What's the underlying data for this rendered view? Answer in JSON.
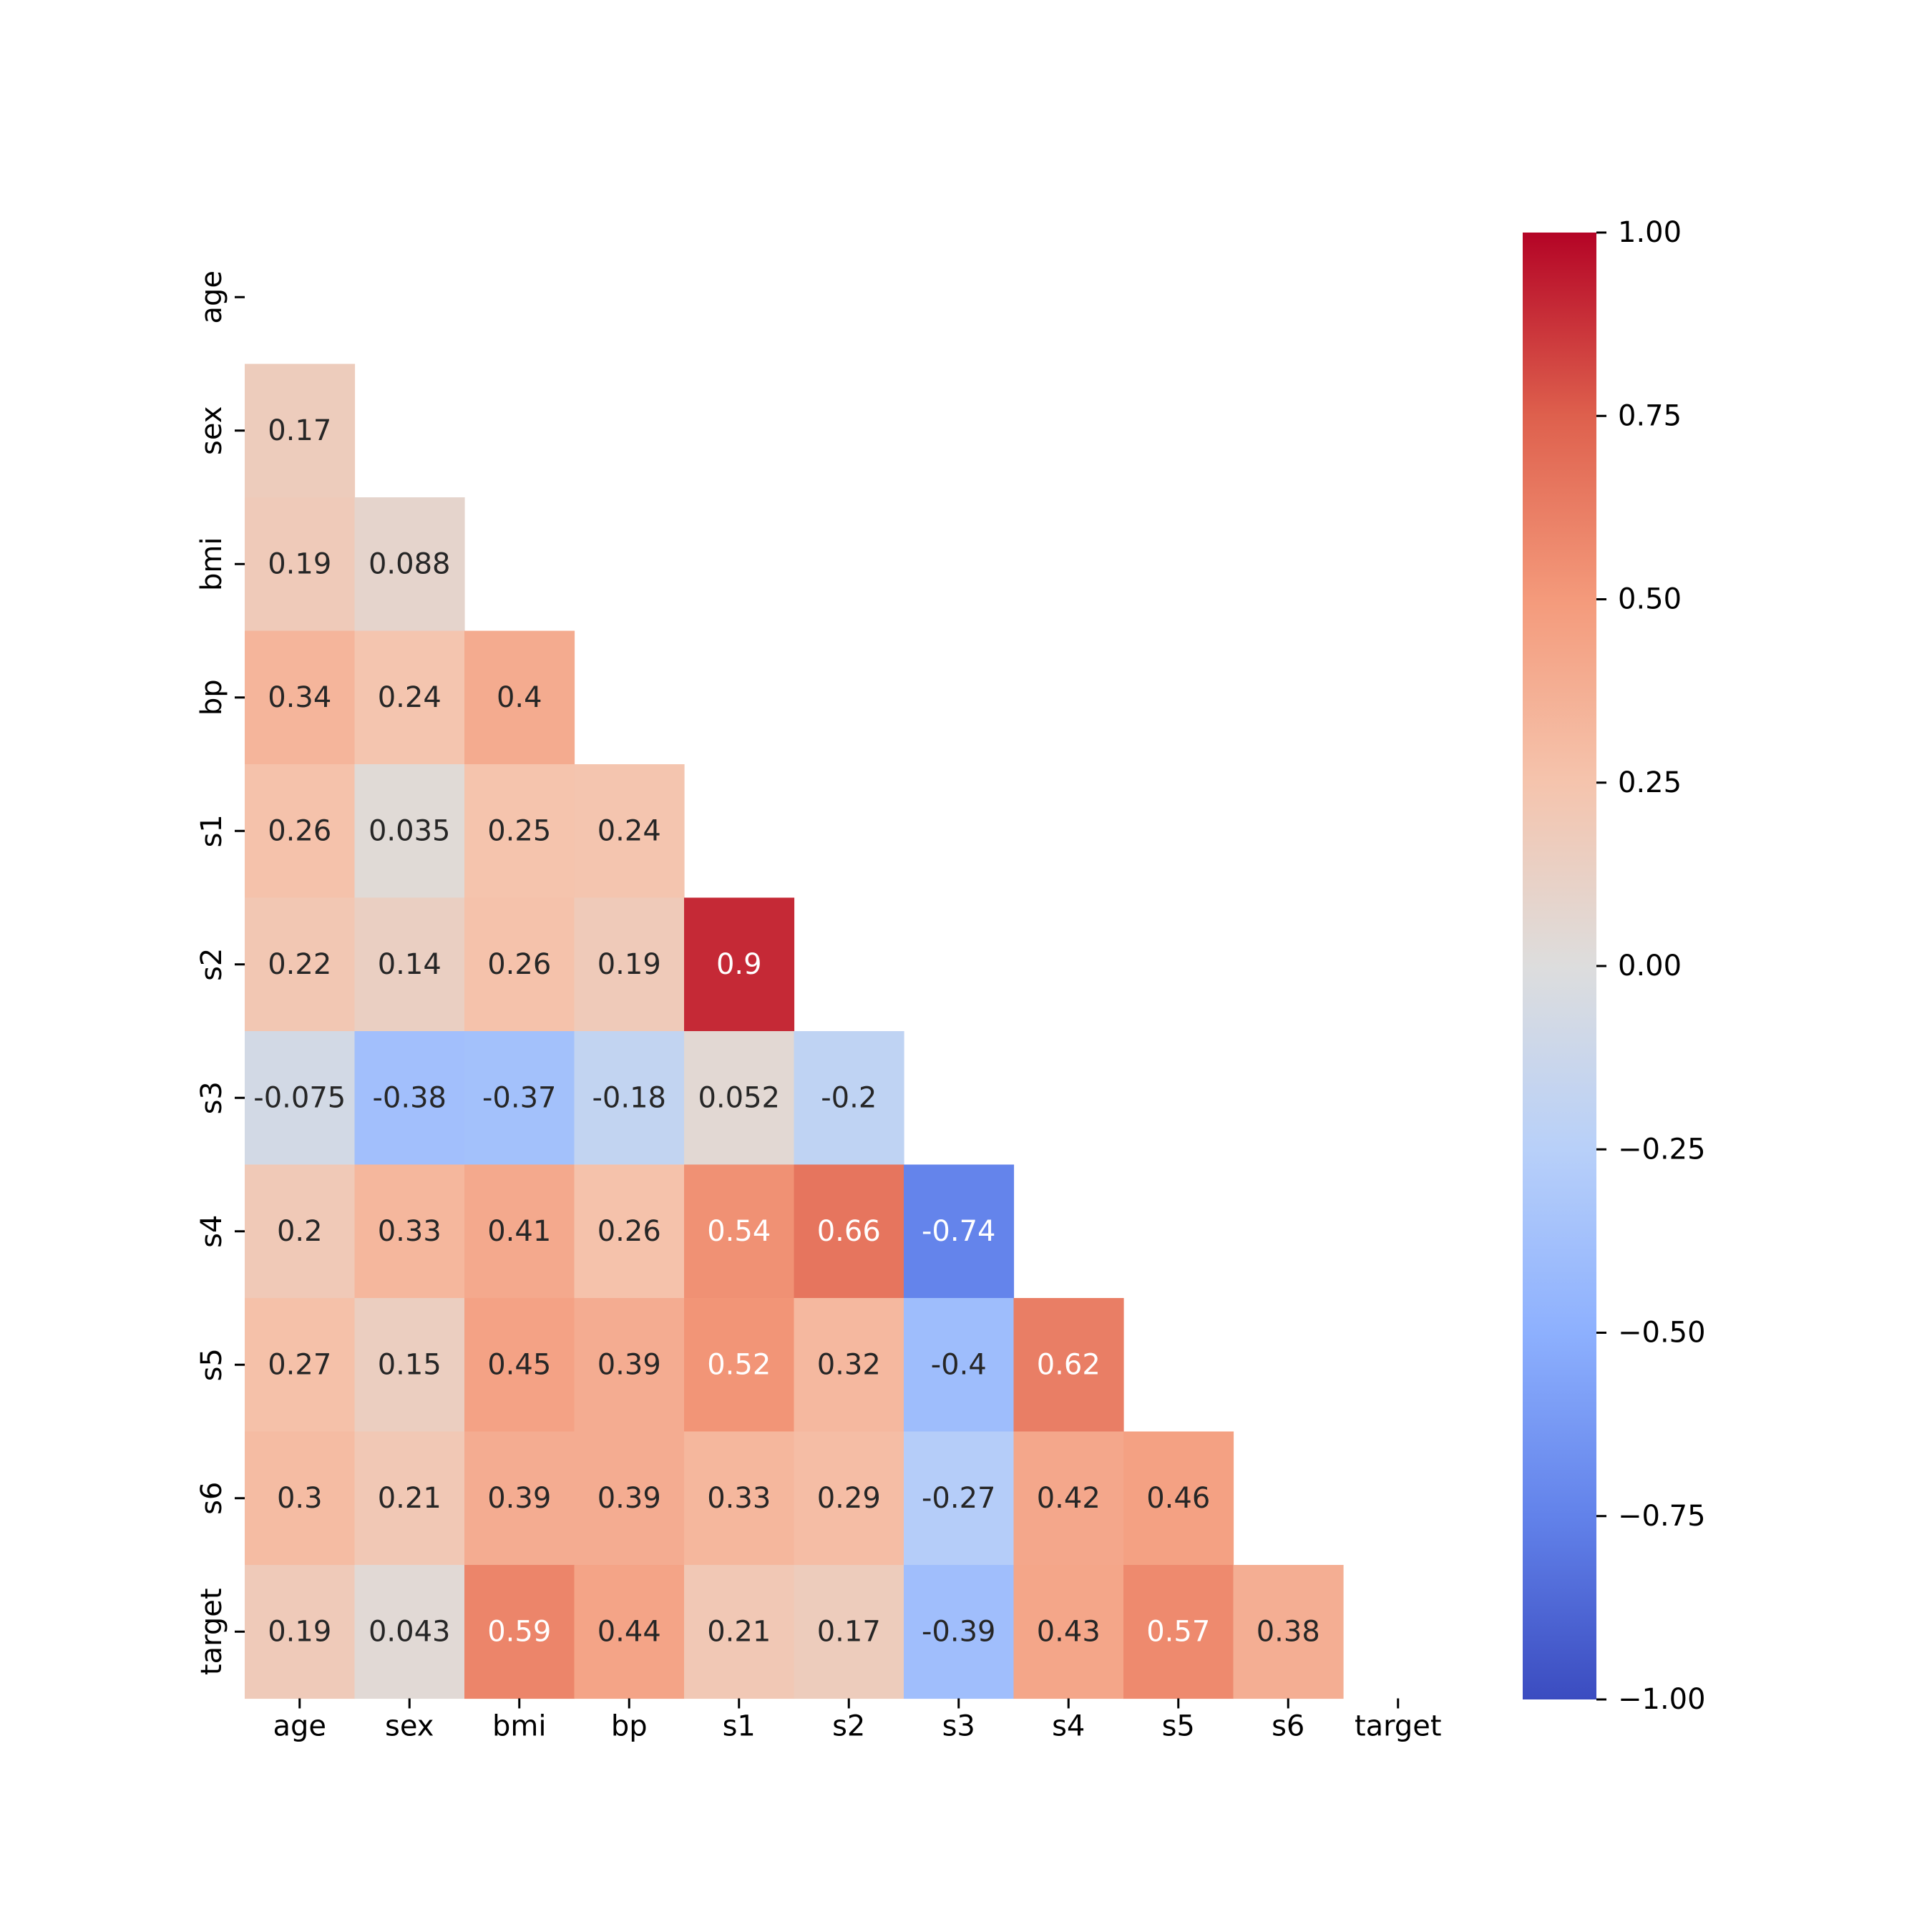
{
  "chart_data": {
    "type": "heatmap",
    "title": "",
    "xlabel": "",
    "ylabel": "",
    "variables": [
      "age",
      "sex",
      "bmi",
      "bp",
      "s1",
      "s2",
      "s3",
      "s4",
      "s5",
      "s6",
      "target"
    ],
    "mask": "upper-triangle-including-diagonal",
    "matrix": [
      [
        null,
        null,
        null,
        null,
        null,
        null,
        null,
        null,
        null,
        null,
        null
      ],
      [
        0.17,
        null,
        null,
        null,
        null,
        null,
        null,
        null,
        null,
        null,
        null
      ],
      [
        0.19,
        0.088,
        null,
        null,
        null,
        null,
        null,
        null,
        null,
        null,
        null
      ],
      [
        0.34,
        0.24,
        0.4,
        null,
        null,
        null,
        null,
        null,
        null,
        null,
        null
      ],
      [
        0.26,
        0.035,
        0.25,
        0.24,
        null,
        null,
        null,
        null,
        null,
        null,
        null
      ],
      [
        0.22,
        0.14,
        0.26,
        0.19,
        0.9,
        null,
        null,
        null,
        null,
        null,
        null
      ],
      [
        -0.075,
        -0.38,
        -0.37,
        -0.18,
        0.052,
        -0.2,
        null,
        null,
        null,
        null,
        null
      ],
      [
        0.2,
        0.33,
        0.41,
        0.26,
        0.54,
        0.66,
        -0.74,
        null,
        null,
        null,
        null
      ],
      [
        0.27,
        0.15,
        0.45,
        0.39,
        0.52,
        0.32,
        -0.4,
        0.62,
        null,
        null,
        null
      ],
      [
        0.3,
        0.21,
        0.39,
        0.39,
        0.33,
        0.29,
        -0.27,
        0.42,
        0.46,
        null,
        null
      ],
      [
        0.19,
        0.043,
        0.59,
        0.44,
        0.21,
        0.17,
        -0.39,
        0.43,
        0.57,
        0.38,
        null
      ]
    ],
    "colormap": "coolwarm",
    "vmin": -1.0,
    "vmax": 1.0,
    "colorbar": {
      "ticks": [
        1.0,
        0.75,
        0.5,
        0.25,
        0.0,
        -0.25,
        -0.5,
        -0.75,
        -1.0
      ],
      "tick_labels": [
        "1.00",
        "0.75",
        "0.50",
        "0.25",
        "0.00",
        "−0.25",
        "−0.50",
        "−0.75",
        "−1.00"
      ],
      "position": "right"
    },
    "annotation_text_colors": {
      "dark": "#262626",
      "light": "#ffffff"
    }
  }
}
